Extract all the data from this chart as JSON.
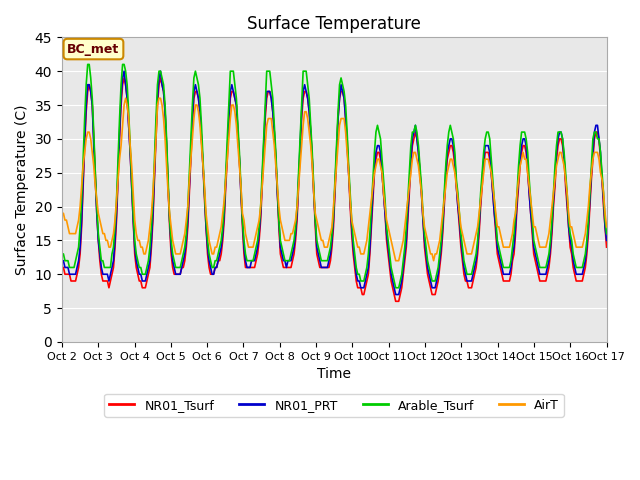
{
  "title": "Surface Temperature",
  "xlabel": "Time",
  "ylabel": "Surface Temperature (C)",
  "ylim": [
    0,
    45
  ],
  "yticks": [
    0,
    5,
    10,
    15,
    20,
    25,
    30,
    35,
    40,
    45
  ],
  "plot_bg_color": "#e8e8e8",
  "fig_bg_color": "#ffffff",
  "grid_color": "#ffffff",
  "annotation_text": "BC_met",
  "annotation_bg": "#ffffcc",
  "annotation_border": "#cc8800",
  "legend": [
    "NR01_Tsurf",
    "NR01_PRT",
    "Arable_Tsurf",
    "AirT"
  ],
  "line_colors": [
    "#ff0000",
    "#0000cc",
    "#00cc00",
    "#ff9900"
  ],
  "line_width": 1.2,
  "xtick_labels": [
    "Oct 2",
    "Oct 3",
    "Oct 4",
    "Oct 5",
    "Oct 6",
    "Oct 7",
    "Oct 8",
    "Oct 9",
    "Oct 10",
    "Oct 11",
    "Oct 12",
    "Oct 13",
    "Oct 14",
    "Oct 15",
    "Oct 16",
    "Oct 17"
  ],
  "n_days": 15,
  "pts_per_day": 24,
  "NR01_Tsurf": [
    11,
    11,
    10,
    10,
    10,
    10,
    9,
    9,
    9,
    9,
    10,
    11,
    13,
    17,
    23,
    29,
    34,
    37,
    38,
    37,
    35,
    30,
    25,
    19,
    15,
    12,
    10,
    9,
    9,
    9,
    9,
    8,
    9,
    10,
    11,
    14,
    18,
    24,
    30,
    35,
    38,
    39,
    38,
    36,
    32,
    28,
    23,
    18,
    13,
    11,
    10,
    9,
    9,
    8,
    8,
    8,
    9,
    10,
    11,
    14,
    18,
    24,
    30,
    35,
    38,
    39,
    38,
    37,
    34,
    29,
    23,
    17,
    13,
    11,
    10,
    10,
    10,
    10,
    10,
    11,
    11,
    12,
    14,
    17,
    22,
    27,
    32,
    36,
    37,
    37,
    36,
    34,
    30,
    26,
    21,
    17,
    13,
    11,
    10,
    10,
    10,
    11,
    11,
    12,
    12,
    13,
    15,
    18,
    23,
    27,
    32,
    36,
    37,
    37,
    36,
    35,
    31,
    27,
    22,
    17,
    13,
    11,
    11,
    11,
    11,
    11,
    11,
    11,
    12,
    13,
    15,
    18,
    23,
    28,
    33,
    36,
    37,
    37,
    36,
    34,
    31,
    27,
    22,
    17,
    13,
    12,
    11,
    11,
    11,
    11,
    11,
    11,
    12,
    13,
    15,
    18,
    23,
    28,
    33,
    36,
    37,
    37,
    36,
    34,
    31,
    27,
    22,
    17,
    13,
    12,
    11,
    11,
    11,
    11,
    11,
    11,
    11,
    12,
    14,
    17,
    22,
    27,
    33,
    36,
    37,
    37,
    36,
    33,
    30,
    25,
    20,
    16,
    13,
    11,
    9,
    8,
    8,
    8,
    7,
    7,
    8,
    9,
    10,
    13,
    17,
    21,
    25,
    27,
    28,
    28,
    27,
    25,
    22,
    19,
    15,
    13,
    11,
    9,
    8,
    7,
    6,
    6,
    6,
    7,
    8,
    10,
    12,
    14,
    18,
    22,
    26,
    29,
    30,
    31,
    30,
    28,
    25,
    22,
    18,
    14,
    12,
    10,
    9,
    8,
    7,
    7,
    7,
    8,
    9,
    11,
    13,
    16,
    20,
    24,
    27,
    28,
    29,
    29,
    28,
    26,
    23,
    20,
    17,
    14,
    12,
    10,
    9,
    9,
    8,
    8,
    8,
    9,
    10,
    11,
    13,
    16,
    20,
    23,
    26,
    28,
    28,
    28,
    27,
    25,
    22,
    19,
    16,
    13,
    12,
    11,
    10,
    9,
    9,
    9,
    9,
    9,
    10,
    12,
    13,
    16,
    20,
    23,
    26,
    28,
    29,
    29,
    28,
    25,
    22,
    19,
    16,
    13,
    12,
    11,
    10,
    9,
    9,
    9,
    9,
    9,
    10,
    11,
    13,
    16,
    20,
    23,
    27,
    29,
    30,
    30,
    29,
    27,
    23,
    20,
    17,
    14,
    13,
    11,
    10,
    9,
    9,
    9,
    9,
    9,
    10,
    11,
    13,
    16,
    20,
    24,
    27,
    30,
    31,
    31,
    30,
    27,
    24,
    20,
    17,
    14
  ],
  "NR01_PRT": [
    12,
    12,
    11,
    11,
    11,
    10,
    10,
    10,
    10,
    10,
    11,
    12,
    14,
    18,
    24,
    30,
    35,
    38,
    38,
    37,
    35,
    29,
    24,
    19,
    15,
    13,
    11,
    10,
    10,
    10,
    10,
    9,
    10,
    11,
    12,
    15,
    19,
    25,
    31,
    36,
    39,
    40,
    38,
    36,
    32,
    28,
    23,
    18,
    14,
    12,
    11,
    10,
    10,
    9,
    9,
    9,
    10,
    11,
    12,
    15,
    19,
    25,
    31,
    36,
    39,
    40,
    38,
    37,
    34,
    29,
    23,
    18,
    14,
    12,
    11,
    10,
    10,
    10,
    10,
    11,
    12,
    13,
    15,
    18,
    23,
    28,
    33,
    37,
    38,
    37,
    36,
    34,
    30,
    26,
    22,
    17,
    14,
    12,
    11,
    10,
    10,
    11,
    11,
    12,
    13,
    14,
    16,
    19,
    24,
    28,
    33,
    37,
    38,
    37,
    36,
    35,
    31,
    27,
    22,
    18,
    14,
    12,
    11,
    11,
    11,
    12,
    12,
    12,
    13,
    14,
    16,
    19,
    24,
    29,
    34,
    37,
    37,
    37,
    36,
    34,
    31,
    27,
    22,
    18,
    14,
    13,
    12,
    12,
    11,
    12,
    12,
    12,
    13,
    14,
    16,
    19,
    24,
    29,
    34,
    37,
    38,
    37,
    36,
    34,
    31,
    27,
    22,
    18,
    14,
    13,
    12,
    11,
    11,
    11,
    11,
    11,
    12,
    13,
    15,
    18,
    23,
    28,
    33,
    36,
    38,
    37,
    36,
    33,
    29,
    25,
    21,
    17,
    14,
    12,
    10,
    9,
    9,
    8,
    8,
    8,
    9,
    10,
    11,
    14,
    18,
    22,
    26,
    28,
    29,
    29,
    28,
    25,
    22,
    19,
    16,
    14,
    12,
    10,
    9,
    8,
    7,
    7,
    7,
    8,
    9,
    11,
    13,
    15,
    19,
    23,
    27,
    30,
    31,
    32,
    30,
    28,
    25,
    22,
    18,
    15,
    13,
    11,
    10,
    9,
    8,
    8,
    8,
    9,
    10,
    12,
    14,
    17,
    21,
    25,
    28,
    29,
    30,
    30,
    29,
    27,
    23,
    20,
    18,
    15,
    13,
    11,
    10,
    9,
    9,
    9,
    9,
    10,
    11,
    12,
    14,
    17,
    21,
    24,
    27,
    29,
    29,
    29,
    28,
    25,
    22,
    19,
    17,
    14,
    13,
    12,
    11,
    10,
    10,
    10,
    10,
    10,
    11,
    13,
    14,
    17,
    21,
    24,
    27,
    29,
    30,
    30,
    29,
    26,
    22,
    19,
    17,
    14,
    13,
    12,
    11,
    10,
    10,
    10,
    10,
    10,
    11,
    12,
    14,
    17,
    21,
    24,
    28,
    30,
    31,
    31,
    30,
    27,
    24,
    21,
    17,
    15,
    14,
    12,
    11,
    10,
    10,
    10,
    10,
    10,
    11,
    12,
    14,
    17,
    21,
    25,
    28,
    31,
    32,
    32,
    30,
    28,
    24,
    21,
    17,
    15
  ],
  "Arable_Tsurf": [
    13,
    13,
    12,
    12,
    12,
    11,
    11,
    11,
    11,
    12,
    13,
    14,
    17,
    21,
    27,
    33,
    38,
    41,
    41,
    39,
    36,
    31,
    25,
    20,
    16,
    14,
    12,
    12,
    11,
    11,
    11,
    11,
    11,
    13,
    14,
    17,
    21,
    27,
    33,
    38,
    41,
    41,
    40,
    38,
    34,
    29,
    24,
    19,
    15,
    13,
    12,
    11,
    11,
    10,
    10,
    10,
    11,
    12,
    14,
    17,
    21,
    27,
    33,
    38,
    40,
    40,
    39,
    38,
    35,
    30,
    24,
    18,
    15,
    13,
    12,
    11,
    11,
    11,
    11,
    12,
    13,
    14,
    16,
    20,
    25,
    30,
    35,
    39,
    40,
    39,
    38,
    36,
    32,
    27,
    22,
    18,
    15,
    13,
    12,
    11,
    11,
    12,
    12,
    13,
    14,
    15,
    17,
    20,
    25,
    30,
    35,
    40,
    40,
    40,
    38,
    36,
    32,
    28,
    23,
    18,
    15,
    13,
    12,
    12,
    12,
    12,
    12,
    13,
    14,
    15,
    17,
    20,
    25,
    30,
    35,
    40,
    40,
    40,
    38,
    36,
    32,
    28,
    23,
    18,
    15,
    14,
    13,
    12,
    12,
    12,
    12,
    13,
    14,
    15,
    17,
    20,
    25,
    30,
    35,
    40,
    40,
    40,
    38,
    36,
    32,
    28,
    23,
    18,
    15,
    14,
    13,
    12,
    12,
    12,
    12,
    12,
    13,
    14,
    16,
    19,
    24,
    29,
    34,
    38,
    39,
    38,
    37,
    35,
    31,
    26,
    22,
    18,
    15,
    13,
    11,
    10,
    10,
    9,
    9,
    9,
    10,
    11,
    13,
    16,
    20,
    24,
    28,
    31,
    32,
    31,
    30,
    27,
    24,
    21,
    17,
    15,
    13,
    11,
    10,
    9,
    8,
    8,
    8,
    9,
    10,
    12,
    14,
    17,
    21,
    25,
    29,
    31,
    31,
    32,
    31,
    29,
    26,
    23,
    19,
    16,
    14,
    12,
    11,
    10,
    9,
    9,
    9,
    10,
    11,
    13,
    15,
    18,
    22,
    26,
    29,
    31,
    32,
    31,
    30,
    28,
    24,
    22,
    19,
    16,
    14,
    12,
    11,
    10,
    10,
    10,
    10,
    11,
    12,
    13,
    15,
    18,
    22,
    25,
    28,
    30,
    31,
    31,
    30,
    27,
    24,
    21,
    18,
    15,
    14,
    13,
    12,
    11,
    11,
    11,
    11,
    11,
    12,
    14,
    16,
    19,
    22,
    26,
    29,
    31,
    31,
    31,
    30,
    28,
    24,
    21,
    18,
    15,
    14,
    13,
    12,
    11,
    11,
    11,
    11,
    11,
    12,
    13,
    15,
    18,
    22,
    26,
    29,
    31,
    31,
    31,
    30,
    28,
    25,
    22,
    18,
    16,
    15,
    13,
    12,
    11,
    11,
    11,
    11,
    11,
    12,
    13,
    15,
    18,
    22,
    26,
    30,
    31,
    31,
    30,
    30,
    28,
    25,
    22,
    18,
    16
  ],
  "AirT": [
    19,
    19,
    18,
    18,
    17,
    16,
    16,
    16,
    16,
    16,
    17,
    18,
    20,
    23,
    26,
    28,
    30,
    31,
    31,
    30,
    28,
    26,
    23,
    21,
    19,
    18,
    17,
    16,
    16,
    15,
    15,
    14,
    14,
    15,
    16,
    18,
    21,
    24,
    27,
    29,
    32,
    35,
    36,
    35,
    33,
    29,
    26,
    22,
    18,
    16,
    15,
    15,
    14,
    14,
    13,
    13,
    14,
    15,
    17,
    19,
    22,
    26,
    30,
    35,
    36,
    36,
    35,
    33,
    30,
    26,
    22,
    19,
    17,
    15,
    14,
    13,
    13,
    13,
    13,
    14,
    15,
    16,
    18,
    20,
    24,
    27,
    30,
    33,
    35,
    35,
    34,
    32,
    29,
    26,
    23,
    19,
    17,
    15,
    14,
    13,
    13,
    14,
    14,
    15,
    16,
    17,
    19,
    21,
    24,
    27,
    30,
    33,
    35,
    35,
    34,
    32,
    29,
    26,
    23,
    19,
    18,
    16,
    15,
    14,
    14,
    14,
    14,
    15,
    16,
    17,
    18,
    20,
    23,
    26,
    29,
    32,
    33,
    33,
    33,
    31,
    29,
    26,
    23,
    20,
    18,
    17,
    16,
    15,
    15,
    15,
    15,
    16,
    16,
    17,
    18,
    20,
    23,
    26,
    29,
    32,
    34,
    34,
    33,
    31,
    29,
    26,
    22,
    19,
    18,
    17,
    16,
    15,
    15,
    14,
    14,
    14,
    15,
    16,
    17,
    20,
    23,
    26,
    29,
    32,
    33,
    33,
    33,
    31,
    28,
    25,
    21,
    18,
    17,
    16,
    15,
    14,
    14,
    13,
    13,
    13,
    14,
    15,
    17,
    19,
    21,
    23,
    25,
    26,
    27,
    27,
    26,
    25,
    22,
    20,
    18,
    17,
    16,
    15,
    14,
    13,
    12,
    12,
    12,
    13,
    14,
    15,
    17,
    19,
    21,
    23,
    25,
    27,
    28,
    28,
    27,
    26,
    24,
    22,
    19,
    17,
    16,
    15,
    14,
    13,
    13,
    12,
    13,
    13,
    14,
    15,
    17,
    19,
    21,
    23,
    25,
    26,
    27,
    27,
    26,
    25,
    23,
    21,
    19,
    17,
    16,
    15,
    14,
    13,
    13,
    13,
    13,
    14,
    15,
    16,
    17,
    19,
    21,
    23,
    25,
    27,
    27,
    27,
    26,
    25,
    23,
    21,
    19,
    17,
    17,
    16,
    15,
    14,
    14,
    14,
    14,
    14,
    15,
    16,
    18,
    19,
    22,
    24,
    26,
    27,
    28,
    27,
    27,
    25,
    23,
    21,
    19,
    17,
    17,
    16,
    15,
    14,
    14,
    14,
    14,
    14,
    15,
    16,
    18,
    20,
    22,
    24,
    26,
    27,
    28,
    28,
    27,
    26,
    24,
    22,
    19,
    17,
    17,
    16,
    15,
    14,
    14,
    14,
    14,
    14,
    15,
    16,
    18,
    20,
    23,
    25,
    27,
    28,
    28,
    28,
    27,
    25,
    24,
    22,
    19,
    17
  ]
}
